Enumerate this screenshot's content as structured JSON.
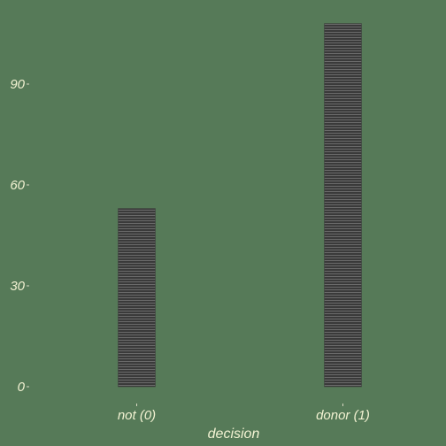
{
  "chart_data": {
    "type": "bar",
    "categories": [
      "not (0)",
      "donor (1)"
    ],
    "values": [
      53,
      108
    ],
    "title": "",
    "xlabel": "decision",
    "ylabel": "",
    "ylim": [
      0,
      112
    ],
    "yticks": [
      0,
      30,
      60,
      90
    ],
    "ytick_labels": [
      "0",
      "30",
      "60",
      "90"
    ],
    "grid": false,
    "legend": "none",
    "colors": {
      "background": "#567a58",
      "bar_fill": "#3a3a3a",
      "bar_lines": "#8a8a8a",
      "text": "#f2f2d2"
    }
  }
}
